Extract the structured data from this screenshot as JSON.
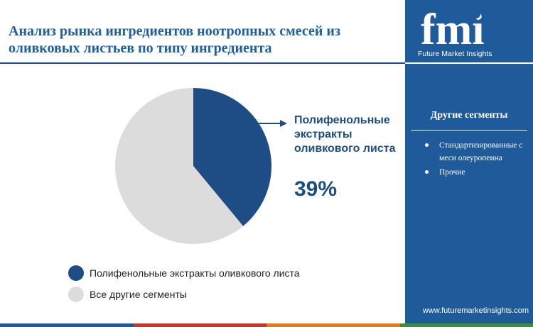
{
  "title": "Анализ рынка ингредиентов ноотропных смесей из оливковых листьев по типу ингредиента",
  "colors": {
    "primary": "#1e4d85",
    "secondary": "#dcdcdc",
    "panel": "#1f5a9a",
    "footer": [
      "#1f5a9a",
      "#c0392b",
      "#e07b1f",
      "#3a8f3e"
    ]
  },
  "chart_data": {
    "type": "pie",
    "categories": [
      "Полифенольные экстракты оливкового листа",
      "Все другие сегменты"
    ],
    "values": [
      39,
      61
    ],
    "unit": "%",
    "colors": [
      "#1e4d85",
      "#dcdcdc"
    ],
    "start_angle_deg": 0,
    "direction": "clockwise",
    "callout": {
      "label": "Полифенольные экстракты оливкового листа",
      "value": "39%"
    },
    "legend": {
      "placement": "bottom-left",
      "items": [
        {
          "label": "Полифенольные экстракты оливкового листа",
          "color": "#1e4d85"
        },
        {
          "label": "Все другие сегменты",
          "color": "#dcdcdc"
        }
      ]
    }
  },
  "sidebar": {
    "logo": {
      "mark_text": "fmi",
      "tagline": "Future Market Insights"
    },
    "segments_heading": "Другие сегменты",
    "segments": [
      "Стандартизированные смеси олеуропеина",
      "Прочие"
    ],
    "website": "www.futuremarketinsights.com"
  }
}
